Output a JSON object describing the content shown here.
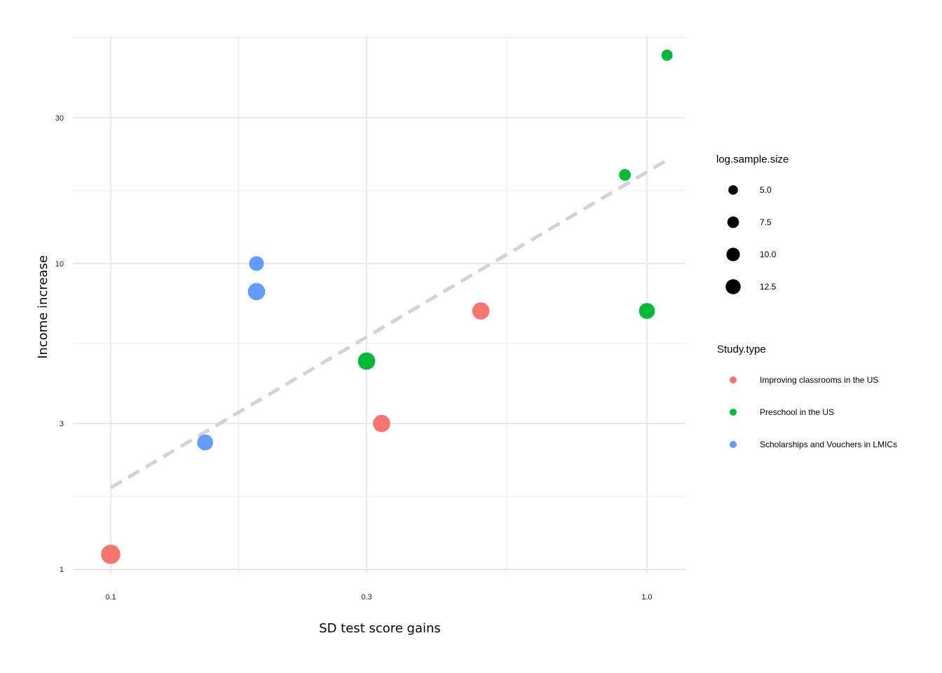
{
  "chart_data": {
    "type": "scatter",
    "xlabel": "SD test score gains",
    "ylabel": "Income increase",
    "x_scale": "log10",
    "y_scale": "log10",
    "xlim": [
      0.085,
      1.18
    ],
    "ylim": [
      0.97,
      53
    ],
    "x_ticks": [
      {
        "value": 0.1,
        "label": "0.1"
      },
      {
        "value": 0.3,
        "label": "0.3"
      },
      {
        "value": 1.0,
        "label": "1.0"
      }
    ],
    "y_ticks": [
      {
        "value": 1,
        "label": "1"
      },
      {
        "value": 3,
        "label": "3"
      },
      {
        "value": 10,
        "label": "10"
      },
      {
        "value": 30,
        "label": "30"
      }
    ],
    "grid": true,
    "trend_line": {
      "style": "dashed",
      "color": "#d3d3d3",
      "x": [
        0.1,
        1.1
      ],
      "y": [
        1.85,
        22
      ]
    },
    "size_legend": {
      "title": "log.sample.size",
      "values": [
        5.0,
        7.5,
        10.0,
        12.5
      ],
      "labels": [
        "5.0",
        "7.5",
        "10.0",
        "12.5"
      ]
    },
    "color_legend": {
      "title": "Study.type",
      "entries": [
        {
          "label": "Improving classrooms in the US",
          "color": "#F8766D"
        },
        {
          "label": "Preschool in the US",
          "color": "#00BA38"
        },
        {
          "label": "Scholarships and Vouchers in LMICs",
          "color": "#619CFF"
        }
      ]
    },
    "series": [
      {
        "study_type": "Improving classrooms in the US",
        "color": "#F8766D",
        "points": [
          {
            "x": 0.1,
            "y": 1.12,
            "size": 12.5
          },
          {
            "x": 0.32,
            "y": 3.0,
            "size": 10.0
          },
          {
            "x": 0.49,
            "y": 7.0,
            "size": 10.0
          }
        ]
      },
      {
        "study_type": "Preschool in the US",
        "color": "#00BA38",
        "points": [
          {
            "x": 0.3,
            "y": 4.8,
            "size": 10.0
          },
          {
            "x": 1.0,
            "y": 7.0,
            "size": 8.5
          },
          {
            "x": 0.91,
            "y": 19.5,
            "size": 4.6
          },
          {
            "x": 1.09,
            "y": 48,
            "size": 4.2
          }
        ]
      },
      {
        "study_type": "Scholarships and Vouchers in LMICs",
        "color": "#619CFF",
        "points": [
          {
            "x": 0.15,
            "y": 2.6,
            "size": 8.5
          },
          {
            "x": 0.187,
            "y": 10.0,
            "size": 7.3
          },
          {
            "x": 0.187,
            "y": 8.1,
            "size": 10.0
          }
        ]
      }
    ]
  }
}
